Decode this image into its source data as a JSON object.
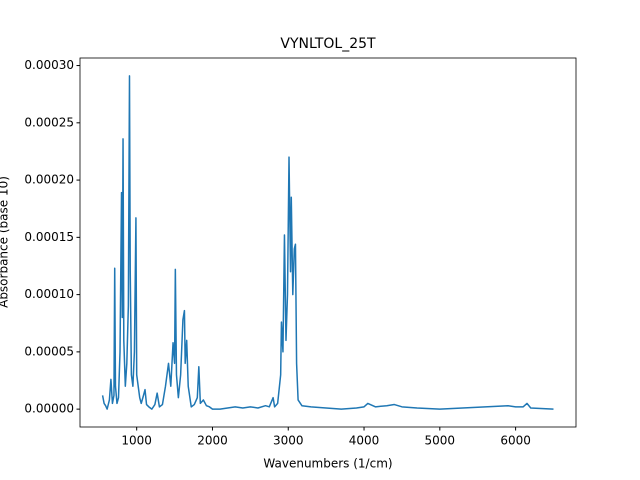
{
  "chart_data": {
    "type": "line",
    "title": "VYNLTOL_25T",
    "xlabel": "Wavenumbers (1/cm)",
    "ylabel": "Absorbance (base 10)",
    "color": "#1f77b4",
    "x": [
      550,
      570,
      590,
      610,
      640,
      660,
      680,
      700,
      710,
      720,
      740,
      760,
      780,
      800,
      810,
      820,
      830,
      850,
      870,
      890,
      905,
      915,
      930,
      950,
      970,
      990,
      1000,
      1020,
      1040,
      1060,
      1090,
      1110,
      1130,
      1160,
      1200,
      1240,
      1270,
      1300,
      1340,
      1380,
      1420,
      1450,
      1480,
      1500,
      1510,
      1525,
      1550,
      1580,
      1610,
      1630,
      1640,
      1660,
      1680,
      1720,
      1760,
      1800,
      1820,
      1840,
      1880,
      1920,
      1960,
      2000,
      2100,
      2200,
      2300,
      2400,
      2500,
      2600,
      2700,
      2750,
      2800,
      2820,
      2860,
      2900,
      2910,
      2930,
      2950,
      2970,
      2990,
      3010,
      3030,
      3040,
      3060,
      3080,
      3095,
      3110,
      3130,
      3180,
      3300,
      3500,
      3700,
      3900,
      4000,
      4050,
      4150,
      4300,
      4400,
      4500,
      4700,
      5000,
      5300,
      5600,
      5900,
      6000,
      6100,
      6150,
      6200,
      6500
    ],
    "values": [
      1.2e-05,
      5e-06,
      3e-06,
      0.0,
      8e-06,
      2.6e-05,
      5e-06,
      1.2e-05,
      0.000123,
      2e-05,
      5e-06,
      1e-05,
      5e-05,
      0.000189,
      8e-05,
      0.000236,
      6e-05,
      2e-05,
      4e-05,
      9e-05,
      0.000291,
      0.00012,
      3e-05,
      2e-05,
      5e-05,
      0.000167,
      3e-05,
      2e-05,
      1e-05,
      5e-06,
      1.2e-05,
      1.7e-05,
      4e-06,
      2e-06,
      0.0,
      4e-06,
      1.4e-05,
      2e-06,
      4e-06,
      2e-05,
      4e-05,
      2e-05,
      5.8e-05,
      4e-05,
      0.000122,
      3e-05,
      1e-05,
      3e-05,
      7.8e-05,
      8.6e-05,
      4e-05,
      6e-05,
      2e-05,
      2e-06,
      4e-06,
      1e-05,
      3.7e-05,
      5e-06,
      8e-06,
      3e-06,
      2e-06,
      0.0,
      0.0,
      1e-06,
      2e-06,
      1e-06,
      2e-06,
      1e-06,
      3e-06,
      2e-06,
      1e-05,
      2e-06,
      5e-06,
      3e-05,
      7.6e-05,
      5e-05,
      0.000152,
      6e-05,
      0.0001,
      0.00022,
      0.00012,
      0.000185,
      0.0001,
      0.00014,
      0.000144,
      4e-05,
      8e-06,
      3e-06,
      2e-06,
      1e-06,
      0.0,
      1e-06,
      2e-06,
      5e-06,
      2e-06,
      3e-06,
      4e-06,
      2e-06,
      1e-06,
      0.0,
      1e-06,
      2e-06,
      3e-06,
      2e-06,
      2e-06,
      5e-06,
      1e-06,
      0.0
    ],
    "xlim": [
      252,
      6797
    ],
    "xticks": [
      1000,
      2000,
      3000,
      4000,
      5000,
      6000
    ],
    "ylim": [
      -1.56e-05,
      0.0003066
    ],
    "yticks": [
      {
        "value": 0,
        "label": "0.00000"
      },
      {
        "value": 5e-05,
        "label": "0.00005"
      },
      {
        "value": 0.0001,
        "label": "0.00010"
      },
      {
        "value": 0.00015,
        "label": "0.00015"
      },
      {
        "value": 0.0002,
        "label": "0.00020"
      },
      {
        "value": 0.00025,
        "label": "0.00025"
      },
      {
        "value": 0.0003,
        "label": "0.00030"
      }
    ]
  }
}
